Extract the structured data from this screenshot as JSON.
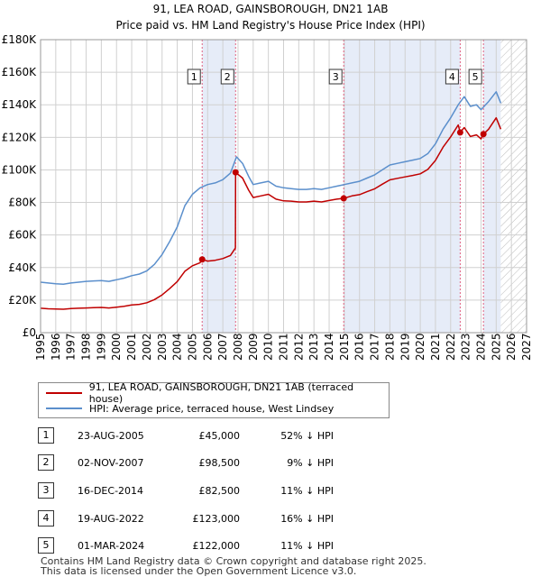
{
  "header": {
    "title": "91, LEA ROAD, GAINSBOROUGH, DN21 1AB",
    "subtitle": "Price paid vs. HM Land Registry's House Price Index (HPI)"
  },
  "colors": {
    "property_line": "#c00000",
    "hpi_line": "#5b8fcc",
    "sale_band": "#e6ecf8",
    "marker_line": "#e06080",
    "grid": "#d0d0d0"
  },
  "chart_data": {
    "type": "line",
    "title": "91, LEA ROAD, GAINSBOROUGH, DN21 1AB",
    "subtitle": "Price paid vs. HM Land Registry's House Price Index (HPI)",
    "xlabel": "",
    "ylabel": "",
    "xlim": [
      1995,
      2027
    ],
    "ylim": [
      0,
      180000
    ],
    "x_ticks": [
      1995,
      1996,
      1997,
      1998,
      1999,
      2000,
      2001,
      2002,
      2003,
      2004,
      2005,
      2006,
      2007,
      2008,
      2009,
      2010,
      2011,
      2012,
      2013,
      2014,
      2015,
      2016,
      2017,
      2018,
      2019,
      2020,
      2021,
      2022,
      2023,
      2024,
      2025,
      2026,
      2027
    ],
    "y_ticks": [
      {
        "value": 0,
        "label": "£0"
      },
      {
        "value": 20000,
        "label": "£20K"
      },
      {
        "value": 40000,
        "label": "£40K"
      },
      {
        "value": 60000,
        "label": "£60K"
      },
      {
        "value": 80000,
        "label": "£80K"
      },
      {
        "value": 100000,
        "label": "£100K"
      },
      {
        "value": 120000,
        "label": "£120K"
      },
      {
        "value": 140000,
        "label": "£140K"
      },
      {
        "value": 160000,
        "label": "£160K"
      },
      {
        "value": 180000,
        "label": "£180K"
      }
    ],
    "grid": true,
    "hatched_after": 2025.3,
    "shaded_bands": [
      [
        2005.65,
        2007.84
      ],
      [
        2014.96,
        2022.63
      ],
      [
        2024.16,
        2025.3
      ]
    ],
    "series": [
      {
        "name": "HPI: Average price, terraced house, West Lindsey",
        "color": "#5b8fcc",
        "points": [
          [
            1995.0,
            31000
          ],
          [
            1995.5,
            30500
          ],
          [
            1996.0,
            30000
          ],
          [
            1996.5,
            29800
          ],
          [
            1997.0,
            30500
          ],
          [
            1997.5,
            31000
          ],
          [
            1998.0,
            31500
          ],
          [
            1998.5,
            31800
          ],
          [
            1999.0,
            32000
          ],
          [
            1999.5,
            31500
          ],
          [
            2000.0,
            32500
          ],
          [
            2000.5,
            33500
          ],
          [
            2001.0,
            35000
          ],
          [
            2001.5,
            36000
          ],
          [
            2002.0,
            38000
          ],
          [
            2002.5,
            42000
          ],
          [
            2003.0,
            48000
          ],
          [
            2003.5,
            56000
          ],
          [
            2004.0,
            65000
          ],
          [
            2004.5,
            78000
          ],
          [
            2005.0,
            85000
          ],
          [
            2005.5,
            89000
          ],
          [
            2006.0,
            91000
          ],
          [
            2006.5,
            92000
          ],
          [
            2007.0,
            94000
          ],
          [
            2007.5,
            98000
          ],
          [
            2007.9,
            108000
          ],
          [
            2008.3,
            104000
          ],
          [
            2008.7,
            96000
          ],
          [
            2009.0,
            91000
          ],
          [
            2009.5,
            92000
          ],
          [
            2010.0,
            93000
          ],
          [
            2010.5,
            90000
          ],
          [
            2011.0,
            89000
          ],
          [
            2011.5,
            88500
          ],
          [
            2012.0,
            88000
          ],
          [
            2012.5,
            88000
          ],
          [
            2013.0,
            88500
          ],
          [
            2013.5,
            88000
          ],
          [
            2014.0,
            89000
          ],
          [
            2014.5,
            90000
          ],
          [
            2015.0,
            91000
          ],
          [
            2015.5,
            92000
          ],
          [
            2016.0,
            93000
          ],
          [
            2016.5,
            95000
          ],
          [
            2017.0,
            97000
          ],
          [
            2017.5,
            100000
          ],
          [
            2018.0,
            103000
          ],
          [
            2018.5,
            104000
          ],
          [
            2019.0,
            105000
          ],
          [
            2019.5,
            106000
          ],
          [
            2020.0,
            107000
          ],
          [
            2020.5,
            110000
          ],
          [
            2021.0,
            116000
          ],
          [
            2021.5,
            125000
          ],
          [
            2022.0,
            132000
          ],
          [
            2022.5,
            140000
          ],
          [
            2022.9,
            145000
          ],
          [
            2023.3,
            139000
          ],
          [
            2023.7,
            140000
          ],
          [
            2024.0,
            137000
          ],
          [
            2024.5,
            142000
          ],
          [
            2025.0,
            148000
          ],
          [
            2025.3,
            141000
          ]
        ]
      },
      {
        "name": "91, LEA ROAD, GAINSBOROUGH, DN21 1AB (terraced house)",
        "color": "#c00000",
        "points": [
          [
            1995.0,
            15000
          ],
          [
            1995.5,
            14700
          ],
          [
            1996.0,
            14500
          ],
          [
            1996.5,
            14400
          ],
          [
            1997.0,
            14800
          ],
          [
            1997.5,
            15000
          ],
          [
            1998.0,
            15200
          ],
          [
            1998.5,
            15400
          ],
          [
            1999.0,
            15500
          ],
          [
            1999.5,
            15200
          ],
          [
            2000.0,
            15700
          ],
          [
            2000.5,
            16200
          ],
          [
            2001.0,
            17000
          ],
          [
            2001.5,
            17400
          ],
          [
            2002.0,
            18400
          ],
          [
            2002.5,
            20300
          ],
          [
            2003.0,
            23200
          ],
          [
            2003.5,
            27100
          ],
          [
            2004.0,
            31400
          ],
          [
            2004.5,
            37700
          ],
          [
            2005.0,
            41100
          ],
          [
            2005.5,
            43000
          ],
          [
            2005.64,
            45000
          ],
          [
            2006.0,
            44000
          ],
          [
            2006.5,
            44500
          ],
          [
            2007.0,
            45500
          ],
          [
            2007.5,
            47400
          ],
          [
            2007.83,
            52000
          ],
          [
            2007.84,
            98500
          ],
          [
            2008.3,
            95000
          ],
          [
            2008.7,
            87500
          ],
          [
            2009.0,
            83000
          ],
          [
            2009.5,
            84000
          ],
          [
            2010.0,
            85000
          ],
          [
            2010.5,
            82000
          ],
          [
            2011.0,
            81000
          ],
          [
            2011.5,
            80800
          ],
          [
            2012.0,
            80300
          ],
          [
            2012.5,
            80300
          ],
          [
            2013.0,
            80800
          ],
          [
            2013.5,
            80300
          ],
          [
            2014.0,
            81200
          ],
          [
            2014.5,
            82000
          ],
          [
            2014.96,
            82500
          ],
          [
            2015.5,
            84000
          ],
          [
            2016.0,
            84800
          ],
          [
            2016.5,
            86600
          ],
          [
            2017.0,
            88400
          ],
          [
            2017.5,
            91200
          ],
          [
            2018.0,
            93900
          ],
          [
            2018.5,
            94800
          ],
          [
            2019.0,
            95700
          ],
          [
            2019.5,
            96600
          ],
          [
            2020.0,
            97600
          ],
          [
            2020.5,
            100300
          ],
          [
            2021.0,
            105800
          ],
          [
            2021.5,
            114000
          ],
          [
            2022.0,
            120300
          ],
          [
            2022.5,
            127600
          ],
          [
            2022.63,
            123000
          ],
          [
            2022.9,
            126000
          ],
          [
            2023.3,
            120500
          ],
          [
            2023.7,
            121500
          ],
          [
            2024.0,
            119000
          ],
          [
            2024.16,
            122000
          ],
          [
            2024.5,
            125000
          ],
          [
            2025.0,
            132000
          ],
          [
            2025.3,
            125000
          ]
        ]
      }
    ],
    "sales": [
      {
        "num": "1",
        "x": 2005.64,
        "price": 45000
      },
      {
        "num": "2",
        "x": 2007.84,
        "price": 98500
      },
      {
        "num": "3",
        "x": 2014.96,
        "price": 82500
      },
      {
        "num": "4",
        "x": 2022.63,
        "price": 123000
      },
      {
        "num": "5",
        "x": 2024.16,
        "price": 122000
      }
    ]
  },
  "legend": {
    "property_label": "91, LEA ROAD, GAINSBOROUGH, DN21 1AB (terraced house)",
    "hpi_label": "HPI: Average price, terraced house, West Lindsey"
  },
  "sales_table": [
    {
      "num": "1",
      "date": "23-AUG-2005",
      "price": "£45,000",
      "diff": "52% ↓ HPI"
    },
    {
      "num": "2",
      "date": "02-NOV-2007",
      "price": "£98,500",
      "diff": "9% ↓ HPI"
    },
    {
      "num": "3",
      "date": "16-DEC-2014",
      "price": "£82,500",
      "diff": "11% ↓ HPI"
    },
    {
      "num": "4",
      "date": "19-AUG-2022",
      "price": "£123,000",
      "diff": "16% ↓ HPI"
    },
    {
      "num": "5",
      "date": "01-MAR-2024",
      "price": "£122,000",
      "diff": "11% ↓ HPI"
    }
  ],
  "footer": {
    "line1": "Contains HM Land Registry data © Crown copyright and database right 2025.",
    "line2": "This data is licensed under the Open Government Licence v3.0."
  }
}
